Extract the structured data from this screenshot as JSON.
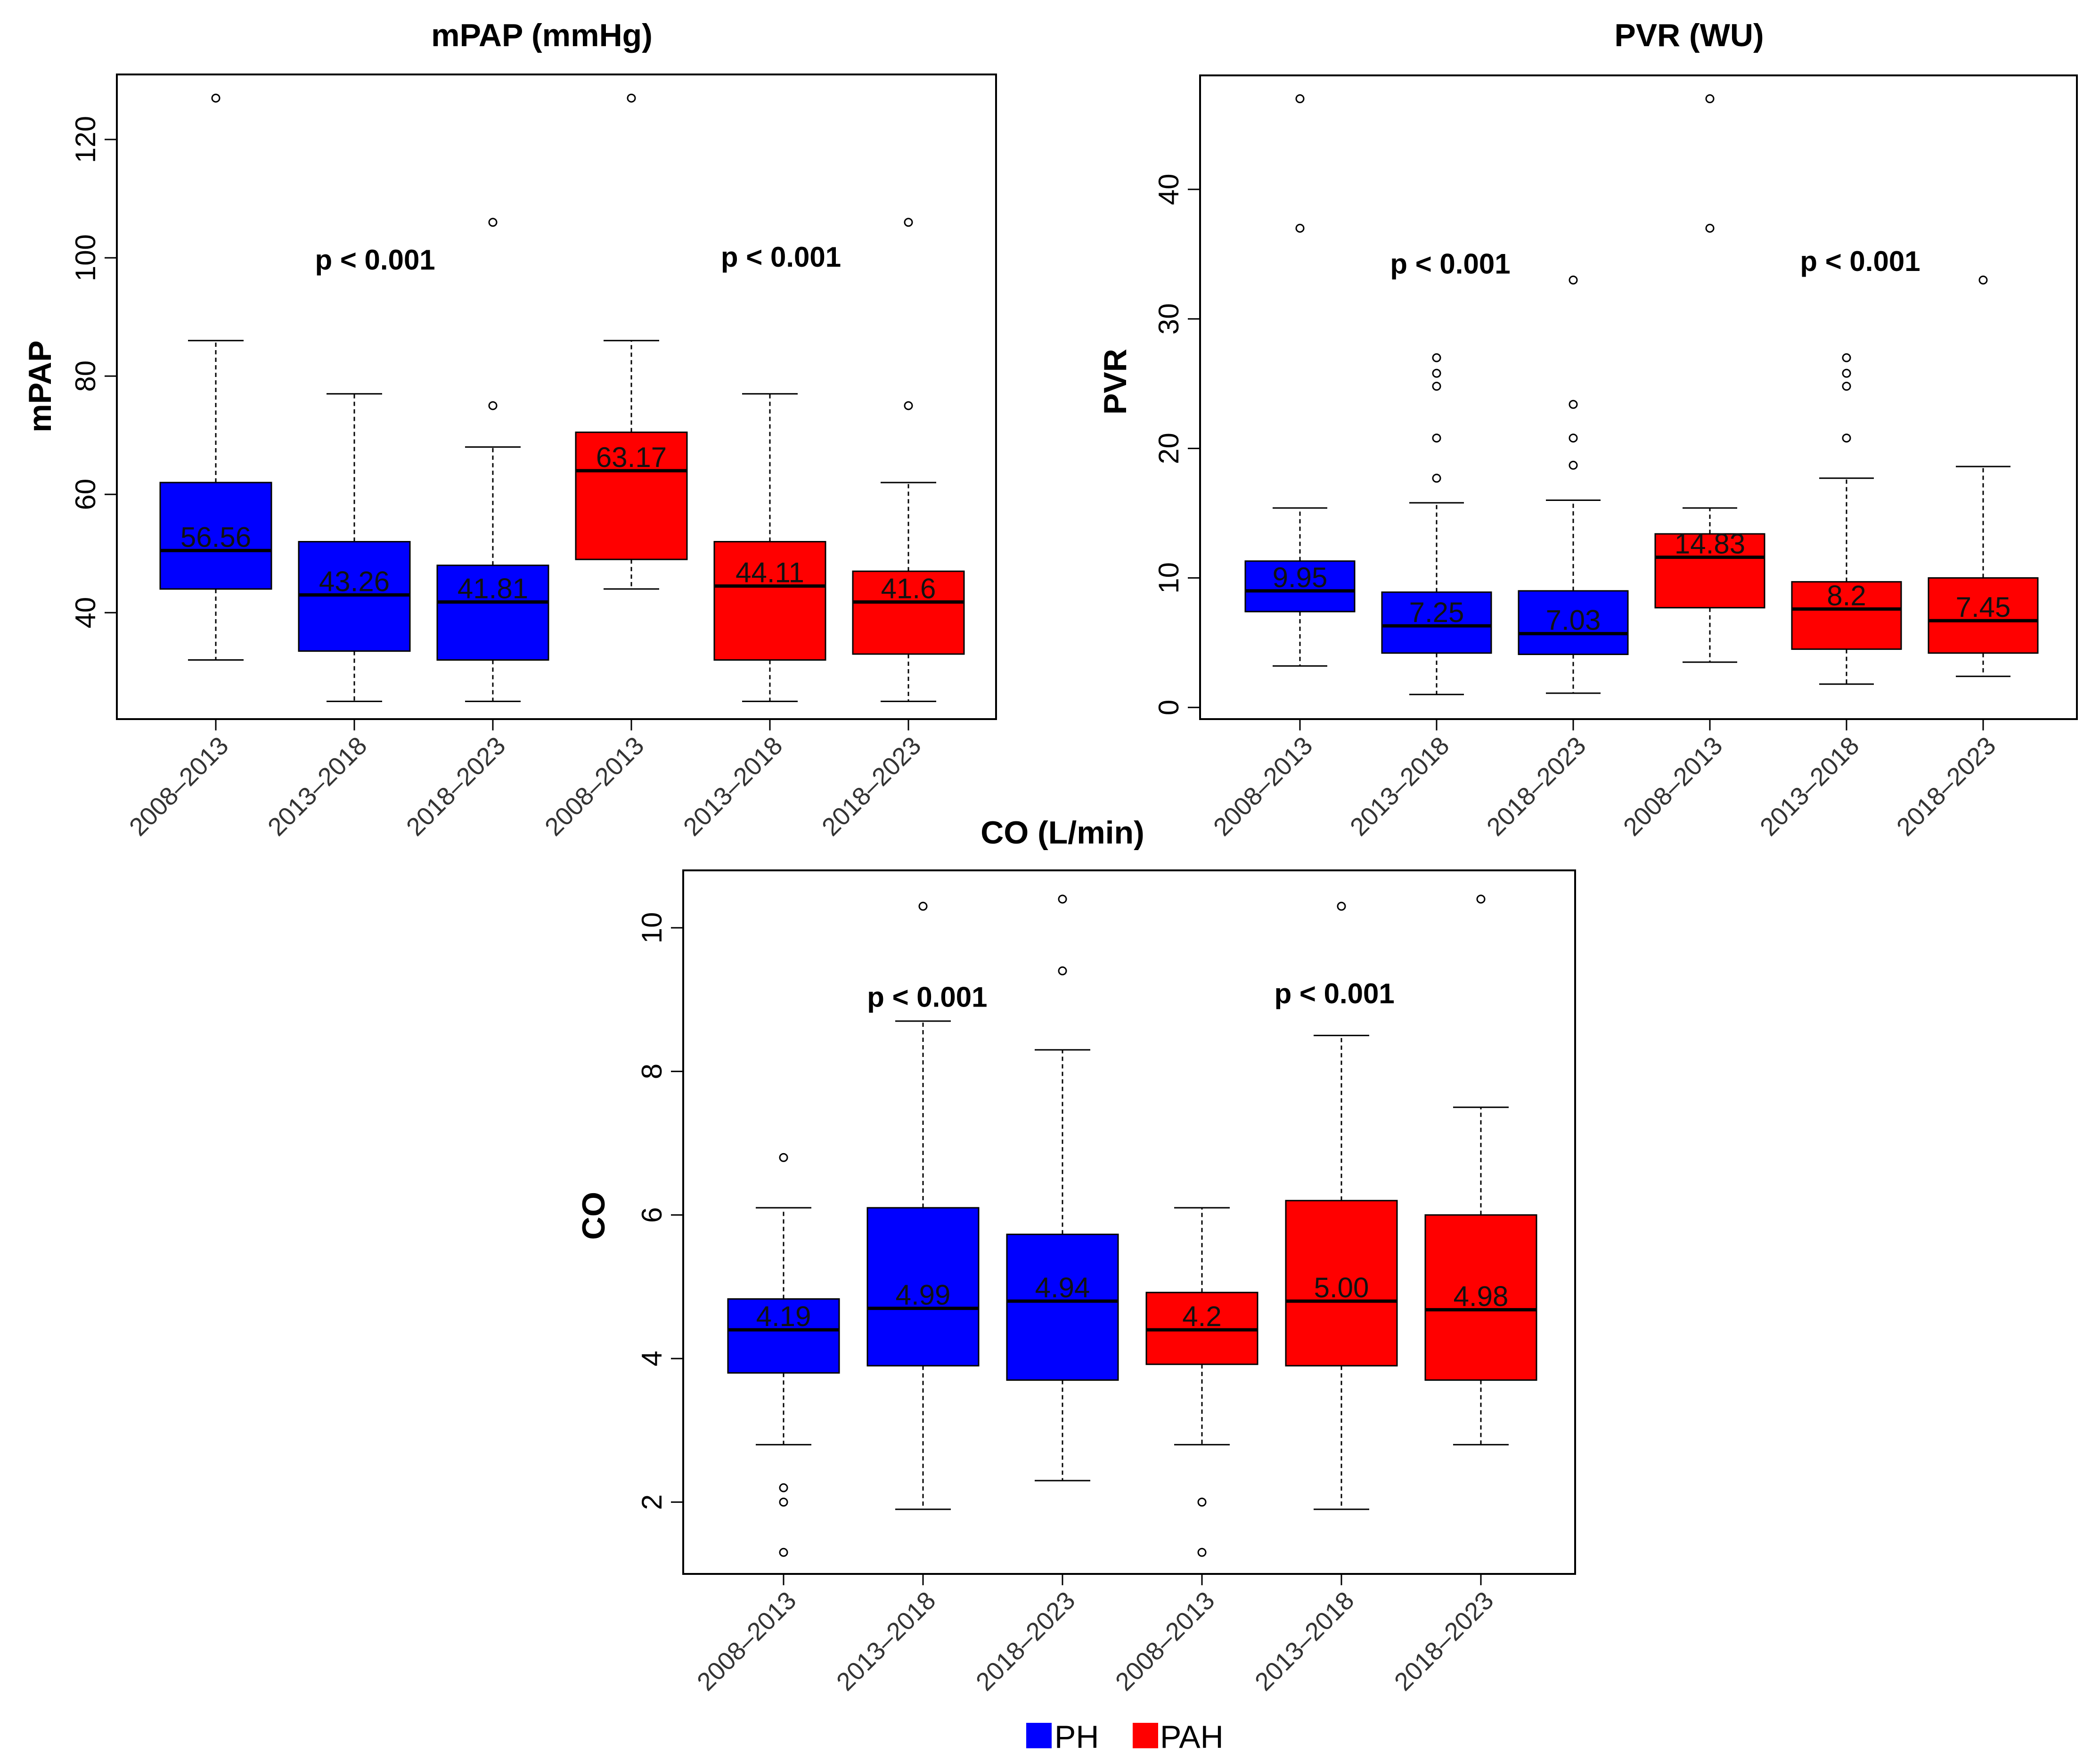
{
  "colors": {
    "PH": "#0000ff",
    "PAH": "#ff0000",
    "axis": "#000000"
  },
  "legend": {
    "items": [
      {
        "label": "PH",
        "color": "#0000ff"
      },
      {
        "label": "PAH",
        "color": "#ff0000"
      }
    ]
  },
  "chart_data": [
    {
      "type": "box",
      "id": "mpap",
      "title": "mPAP (mmHg)",
      "ylabel": "mPAP",
      "ylim": [
        22,
        131
      ],
      "yticks": [
        40,
        60,
        80,
        100,
        120
      ],
      "categories": [
        "2008–2013",
        "2013–2018",
        "2018–2023",
        "2008–2013",
        "2013–2018",
        "2018–2023"
      ],
      "groups": [
        "PH",
        "PH",
        "PH",
        "PAH",
        "PAH",
        "PAH"
      ],
      "boxes": [
        {
          "whisker_low": 32,
          "q1": 44,
          "median": 50.5,
          "q3": 62,
          "whisker_high": 86,
          "outliers": [
            127
          ],
          "label": "56.56"
        },
        {
          "whisker_low": 25,
          "q1": 33.5,
          "median": 43,
          "q3": 52,
          "whisker_high": 77,
          "outliers": [],
          "label": "43.26"
        },
        {
          "whisker_low": 25,
          "q1": 32,
          "median": 41.8,
          "q3": 48,
          "whisker_high": 68,
          "outliers": [
            75,
            106
          ],
          "label": "41.81"
        },
        {
          "whisker_low": 44,
          "q1": 49,
          "median": 64,
          "q3": 70.5,
          "whisker_high": 86,
          "outliers": [
            127
          ],
          "label": "63.17"
        },
        {
          "whisker_low": 25,
          "q1": 32,
          "median": 44.5,
          "q3": 52,
          "whisker_high": 77,
          "outliers": [],
          "label": "44.11"
        },
        {
          "whisker_low": 25,
          "q1": 33,
          "median": 41.8,
          "q3": 47,
          "whisker_high": 62,
          "outliers": [
            75,
            106
          ],
          "label": "41.6"
        }
      ],
      "annotations": [
        {
          "text": "p < 0.001",
          "x": 2.15,
          "y": 98
        },
        {
          "text": "p < 0.001",
          "x": 5.08,
          "y": 98.5
        }
      ]
    },
    {
      "type": "box",
      "id": "pvr",
      "title": "PVR (WU)",
      "ylabel": "PVR",
      "ylim": [
        -0.9,
        48.8
      ],
      "yticks": [
        0,
        10,
        20,
        30,
        40
      ],
      "categories": [
        "2008–2013",
        "2013–2018",
        "2018–2023",
        "2008–2013",
        "2013–2018",
        "2018–2023"
      ],
      "groups": [
        "PH",
        "PH",
        "PH",
        "PAH",
        "PAH",
        "PAH"
      ],
      "boxes": [
        {
          "whisker_low": 3.2,
          "q1": 7.4,
          "median": 9.0,
          "q3": 11.3,
          "whisker_high": 15.4,
          "outliers": [
            37,
            47
          ],
          "label": "9.95"
        },
        {
          "whisker_low": 1.0,
          "q1": 4.2,
          "median": 6.3,
          "q3": 8.9,
          "whisker_high": 15.8,
          "outliers": [
            17.7,
            20.8,
            24.8,
            25.8,
            27
          ],
          "label": "7.25"
        },
        {
          "whisker_low": 1.1,
          "q1": 4.1,
          "median": 5.7,
          "q3": 9.0,
          "whisker_high": 16.0,
          "outliers": [
            18.7,
            20.8,
            23.4,
            33
          ],
          "label": "7.03"
        },
        {
          "whisker_low": 3.5,
          "q1": 7.7,
          "median": 11.6,
          "q3": 13.4,
          "whisker_high": 15.4,
          "outliers": [
            37,
            47
          ],
          "label": "14.83"
        },
        {
          "whisker_low": 1.8,
          "q1": 4.5,
          "median": 7.6,
          "q3": 9.7,
          "whisker_high": 17.7,
          "outliers": [
            20.8,
            24.8,
            25.8,
            27
          ],
          "label": "8.2"
        },
        {
          "whisker_low": 2.4,
          "q1": 4.2,
          "median": 6.7,
          "q3": 10.0,
          "whisker_high": 18.6,
          "outliers": [
            33
          ],
          "label": "7.45"
        }
      ],
      "annotations": [
        {
          "text": "p < 0.001",
          "x": 2.1,
          "y": 33.5
        },
        {
          "text": "p < 0.001",
          "x": 5.1,
          "y": 33.7
        }
      ]
    },
    {
      "type": "box",
      "id": "co",
      "title": "CO (L/min)",
      "ylabel": "CO",
      "ylim": [
        1.0,
        10.8
      ],
      "yticks": [
        2,
        4,
        6,
        8,
        10
      ],
      "categories": [
        "2008–2013",
        "2013–2018",
        "2018–2023",
        "2008–2013",
        "2013–2018",
        "2018–2023"
      ],
      "groups": [
        "PH",
        "PH",
        "PH",
        "PAH",
        "PAH",
        "PAH"
      ],
      "boxes": [
        {
          "whisker_low": 2.8,
          "q1": 3.8,
          "median": 4.4,
          "q3": 4.83,
          "whisker_high": 6.1,
          "outliers": [
            1.3,
            2.0,
            2.2,
            6.8
          ],
          "label": "4.19"
        },
        {
          "whisker_low": 1.9,
          "q1": 3.9,
          "median": 4.7,
          "q3": 6.1,
          "whisker_high": 8.7,
          "outliers": [
            10.3
          ],
          "label": "4.99"
        },
        {
          "whisker_low": 2.3,
          "q1": 3.7,
          "median": 4.8,
          "q3": 5.73,
          "whisker_high": 8.3,
          "outliers": [
            9.4,
            10.4
          ],
          "label": "4.94"
        },
        {
          "whisker_low": 2.8,
          "q1": 3.92,
          "median": 4.4,
          "q3": 4.92,
          "whisker_high": 6.1,
          "outliers": [
            1.3,
            2.0
          ],
          "label": "4.2"
        },
        {
          "whisker_low": 1.9,
          "q1": 3.9,
          "median": 4.8,
          "q3": 6.2,
          "whisker_high": 8.5,
          "outliers": [
            10.3
          ],
          "label": "5.00"
        },
        {
          "whisker_low": 2.8,
          "q1": 3.7,
          "median": 4.68,
          "q3": 6.0,
          "whisker_high": 7.5,
          "outliers": [
            10.4
          ],
          "label": "4.98"
        }
      ],
      "annotations": [
        {
          "text": "p < 0.001",
          "x": 2.03,
          "y": 8.9
        },
        {
          "text": "p < 0.001",
          "x": 4.95,
          "y": 8.95
        }
      ]
    }
  ]
}
